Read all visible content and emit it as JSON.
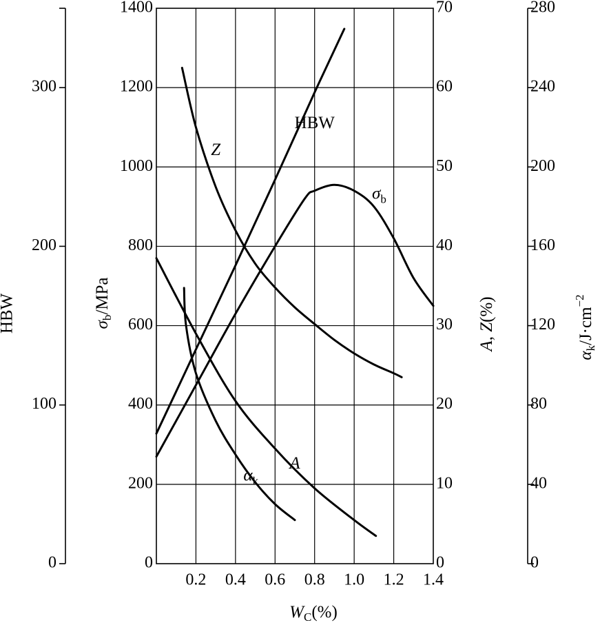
{
  "chart_data": {
    "type": "line",
    "xlim": [
      0,
      1.4
    ],
    "x_ticks": [
      0.2,
      0.4,
      0.6,
      0.8,
      1.0,
      1.2,
      1.4
    ],
    "x_tick_labels": [
      "0.2",
      "0.4",
      "0.6",
      "0.8",
      "1.0",
      "1.2",
      "1.4"
    ],
    "xlabel": {
      "main": "W",
      "sub": "C",
      "suffix": "(%)"
    },
    "grid": true,
    "axes": {
      "sigma": {
        "label_main": "σ",
        "label_sub": "b",
        "label_suffix": "/MPa",
        "lim": [
          0,
          1400
        ],
        "ticks": [
          0,
          200,
          400,
          600,
          800,
          1000,
          1200,
          1400
        ],
        "tick_labels": [
          "0",
          "200",
          "400",
          "600",
          "800",
          "1000",
          "1200",
          "1400"
        ]
      },
      "hbw": {
        "label": "HBW",
        "lim": [
          0,
          350
        ],
        "ticks": [
          0,
          100,
          200,
          300
        ],
        "tick_labels": [
          "0",
          "100",
          "200",
          "300"
        ]
      },
      "az": {
        "label": "A, Z(%)",
        "lim": [
          0,
          70
        ],
        "ticks": [
          0,
          10,
          20,
          30,
          40,
          50,
          60,
          70
        ],
        "tick_labels": [
          "0",
          "10",
          "20",
          "30",
          "40",
          "50",
          "60",
          "70"
        ]
      },
      "ak": {
        "label_main": "α",
        "label_sub": "k",
        "label_suffix": "/J·cm",
        "label_sup": "−2",
        "lim": [
          0,
          280
        ],
        "ticks": [
          0,
          40,
          80,
          120,
          160,
          200,
          240,
          280
        ],
        "tick_labels": [
          "0",
          "40",
          "80",
          "120",
          "160",
          "200",
          "240",
          "280"
        ]
      }
    },
    "series": [
      {
        "name": "Z",
        "axis": "az",
        "label_at": [
          0.3,
          52
        ],
        "x": [
          0.13,
          0.2,
          0.3,
          0.4,
          0.5,
          0.6,
          0.7,
          0.8,
          0.9,
          1.0,
          1.1,
          1.2,
          1.24
        ],
        "y": [
          62.5,
          55,
          47.5,
          42,
          37.8,
          34.8,
          32.3,
          30.2,
          28.2,
          26.5,
          25.1,
          24,
          23.5
        ]
      },
      {
        "name": "HBW",
        "axis": "hbw",
        "label_at": [
          0.8,
          277
        ],
        "x": [
          0,
          0.2,
          0.4,
          0.6,
          0.8,
          0.95
        ],
        "y": [
          82,
          135,
          188,
          242,
          297,
          337
        ]
      },
      {
        "name": "σb",
        "axis": "sigma",
        "label_at": [
          1.09,
          930
        ],
        "x": [
          0,
          0.2,
          0.4,
          0.6,
          0.75,
          0.8,
          0.9,
          1.0,
          1.1,
          1.2,
          1.3,
          1.4
        ],
        "y": [
          270,
          450,
          630,
          800,
          920,
          940,
          955,
          940,
          900,
          820,
          720,
          650
        ]
      },
      {
        "name": "A",
        "axis": "az",
        "label_at": [
          0.7,
          12.5
        ],
        "x": [
          0,
          0.2,
          0.4,
          0.6,
          0.8,
          1.0,
          1.11
        ],
        "y": [
          38.5,
          29,
          20.5,
          14.5,
          9.5,
          5.5,
          3.5
        ]
      },
      {
        "name": "αk",
        "axis": "ak",
        "label_at": [
          0.44,
          44
        ],
        "x": [
          0.14,
          0.15,
          0.2,
          0.3,
          0.4,
          0.5,
          0.6,
          0.7
        ],
        "y": [
          139,
          120,
          96,
          72,
          55,
          41,
          30,
          22
        ]
      }
    ]
  }
}
